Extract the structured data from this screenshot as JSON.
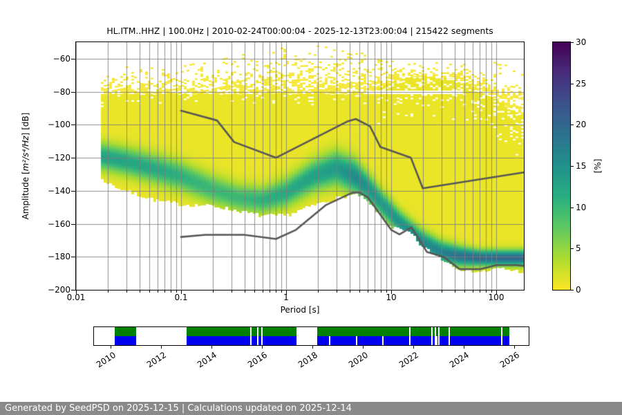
{
  "title": "HL.ITM..HHZ | 100.0Hz | 2010-02-24T00:00:04 - 2025-12-13T23:00:04 | 215422 segments",
  "plot": {
    "x_axis": {
      "label": "Period [s]",
      "tick_labels": [
        "0.01",
        "0.1",
        "1",
        "10",
        "100"
      ],
      "tick_values": [
        0.01,
        0.1,
        1,
        10,
        100
      ],
      "scale": "log",
      "range": [
        0.01,
        183
      ]
    },
    "y_axis": {
      "label_prefix": "Amplitude [",
      "label_math": "m²/s⁴/Hz",
      "label_suffix": "] [dB]",
      "tick_labels": [
        "−60",
        "−80",
        "−100",
        "−120",
        "−140",
        "−160",
        "−180",
        "−200"
      ],
      "tick_values": [
        -60,
        -80,
        -100,
        -120,
        -140,
        -160,
        -180,
        -200
      ],
      "range": [
        -200,
        -50
      ]
    },
    "colorbar": {
      "label": "[%]",
      "tick_labels": [
        "0",
        "5",
        "10",
        "15",
        "20",
        "25",
        "30"
      ],
      "tick_values": [
        0,
        5,
        10,
        15,
        20,
        25,
        30
      ],
      "range": [
        0,
        30
      ],
      "colormap": "viridis-reversed",
      "stops": [
        "#fde725",
        "#addc30",
        "#5ec962",
        "#28ae80",
        "#21918c",
        "#2c728e",
        "#3b528b",
        "#472d7b",
        "#440154"
      ]
    },
    "grid_color": "#7d7d7d",
    "noise_model_color": "#575757"
  },
  "chart_data": {
    "type": "heatmap",
    "title": "HL.ITM..HHZ | 100.0Hz | 2010-02-24T00:00:04 - 2025-12-13T23:00:04 | 215422 segments",
    "xlabel": "Period [s]",
    "ylabel": "Amplitude [m²/s⁴/Hz] [dB]",
    "x_scale": "log",
    "xlim": [
      0.01,
      183
    ],
    "ylim": [
      -200,
      -50
    ],
    "colorbar_label": "[%]",
    "colorbar_range": [
      0,
      30
    ],
    "ppsd_min_period": 0.0175,
    "white_strip_db": [
      -81.2,
      -79.3
    ],
    "white_strip_max_period": 48,
    "mode_ridge": {
      "comment": "high-probability ridge of the PPSD: period[s], center dB, gaussian sigma dB, peak percent",
      "points": [
        [
          0.0175,
          -119,
          5.5,
          12
        ],
        [
          0.03,
          -122,
          5.7,
          11.5
        ],
        [
          0.06,
          -127,
          6,
          11
        ],
        [
          0.1,
          -131,
          6,
          10
        ],
        [
          0.2,
          -139,
          6,
          9
        ],
        [
          0.35,
          -144,
          5.7,
          9
        ],
        [
          0.6,
          -145.5,
          5.5,
          10
        ],
        [
          1.0,
          -141,
          6,
          11
        ],
        [
          1.8,
          -131,
          6.5,
          12
        ],
        [
          3.0,
          -126,
          7,
          13
        ],
        [
          4.5,
          -131,
          7,
          15
        ],
        [
          6.0,
          -138,
          6,
          14
        ],
        [
          8.0,
          -147,
          5.5,
          13
        ],
        [
          12,
          -159,
          5,
          14
        ],
        [
          20,
          -171,
          4.8,
          15
        ],
        [
          30,
          -177,
          4.5,
          16
        ],
        [
          45,
          -179.5,
          4,
          18
        ],
        [
          70,
          -180.5,
          3.2,
          19
        ],
        [
          110,
          -180.5,
          3.2,
          19
        ],
        [
          183,
          -180.5,
          3.2,
          19
        ]
      ]
    },
    "dense_top_envelope": [
      [
        0.0175,
        -81
      ],
      [
        1,
        -81
      ],
      [
        5,
        -81
      ],
      [
        7,
        -79
      ],
      [
        10,
        -74
      ],
      [
        16,
        -71
      ],
      [
        40,
        -71
      ],
      [
        55,
        -75
      ],
      [
        70,
        -80
      ],
      [
        90,
        -83
      ],
      [
        120,
        -88
      ],
      [
        150,
        -92
      ],
      [
        183,
        -94
      ]
    ],
    "bottom_envelope": [
      [
        0.0175,
        -133
      ],
      [
        0.025,
        -138
      ],
      [
        0.04,
        -142.5
      ],
      [
        0.06,
        -146
      ],
      [
        0.1,
        -148
      ],
      [
        0.2,
        -149
      ],
      [
        0.35,
        -152
      ],
      [
        0.6,
        -155
      ],
      [
        1.0,
        -155
      ],
      [
        1.6,
        -150
      ],
      [
        2.5,
        -146
      ],
      [
        4.0,
        -142.5
      ],
      [
        5.0,
        -142.5
      ],
      [
        6.5,
        -149
      ],
      [
        10,
        -162
      ],
      [
        15,
        -165
      ],
      [
        20,
        -174
      ],
      [
        30,
        -181
      ],
      [
        45,
        -187
      ],
      [
        70,
        -189
      ],
      [
        110,
        -187
      ],
      [
        183,
        -189
      ]
    ],
    "scatter_top_envelope": [
      [
        0.0175,
        -68
      ],
      [
        0.04,
        -63
      ],
      [
        0.08,
        -66
      ],
      [
        0.15,
        -62
      ],
      [
        0.4,
        -56
      ],
      [
        1.0,
        -53
      ],
      [
        2.0,
        -52
      ],
      [
        3.5,
        -54
      ],
      [
        6,
        -57
      ],
      [
        10,
        -60
      ],
      [
        18,
        -63
      ],
      [
        30,
        -62
      ],
      [
        60,
        -62
      ],
      [
        100,
        -62
      ],
      [
        150,
        -63
      ],
      [
        183,
        -68
      ]
    ],
    "noise_models": {
      "nlnm": [
        [
          0.1,
          -168.0
        ],
        [
          0.17,
          -166.7
        ],
        [
          0.4,
          -166.7
        ],
        [
          0.8,
          -169.2
        ],
        [
          1.24,
          -163.7
        ],
        [
          2.4,
          -148.6
        ],
        [
          4.3,
          -141.1
        ],
        [
          5.0,
          -141.1
        ],
        [
          6.0,
          -144.0
        ],
        [
          10.0,
          -163.7
        ],
        [
          12.0,
          -166.4
        ],
        [
          15.6,
          -162.1
        ],
        [
          21.9,
          -177.1
        ],
        [
          31.6,
          -180.1
        ],
        [
          45.0,
          -187.5
        ],
        [
          70.0,
          -187.5
        ],
        [
          101.0,
          -185.0
        ],
        [
          154.0,
          -185.0
        ],
        [
          183.0,
          -185.5
        ]
      ],
      "nhnm": [
        [
          0.1,
          -91.5
        ],
        [
          0.22,
          -97.4
        ],
        [
          0.32,
          -110.5
        ],
        [
          0.8,
          -120.0
        ],
        [
          3.8,
          -98.1
        ],
        [
          4.6,
          -96.5
        ],
        [
          6.3,
          -101.0
        ],
        [
          7.9,
          -113.5
        ],
        [
          15.4,
          -120.0
        ],
        [
          20.0,
          -138.5
        ],
        [
          183.0,
          -128.9
        ]
      ]
    }
  },
  "availability": {
    "year_tick_labels": [
      "2010",
      "2012",
      "2014",
      "2016",
      "2018",
      "2020",
      "2022",
      "2024",
      "2026"
    ],
    "year_tick_values": [
      2010,
      2012,
      2014,
      2016,
      2018,
      2020,
      2022,
      2024,
      2026
    ],
    "axis_year_range": [
      2009.34,
      2026.58
    ],
    "top_row_color": "#008000",
    "bottom_row_color": "#0000ee",
    "segments": [
      {
        "start": 2010.15,
        "end": 2011.0
      },
      {
        "start": 2013.0,
        "end": 2017.38
      },
      {
        "start": 2018.18,
        "end": 2025.82
      }
    ],
    "gaps_both_rows": [
      2015.53,
      2015.8,
      2015.96,
      2021.84,
      2022.71,
      2022.84,
      2022.98,
      2023.41,
      2025.47
    ],
    "gaps_bottom_row_only": [
      2018.67,
      2019.73,
      2020.76,
      2022.9
    ]
  },
  "footer": {
    "text": "Generated by SeedPSD on 2025-12-15 | Calculations updated on 2025-12-14",
    "bg": "#8a8a8a"
  }
}
